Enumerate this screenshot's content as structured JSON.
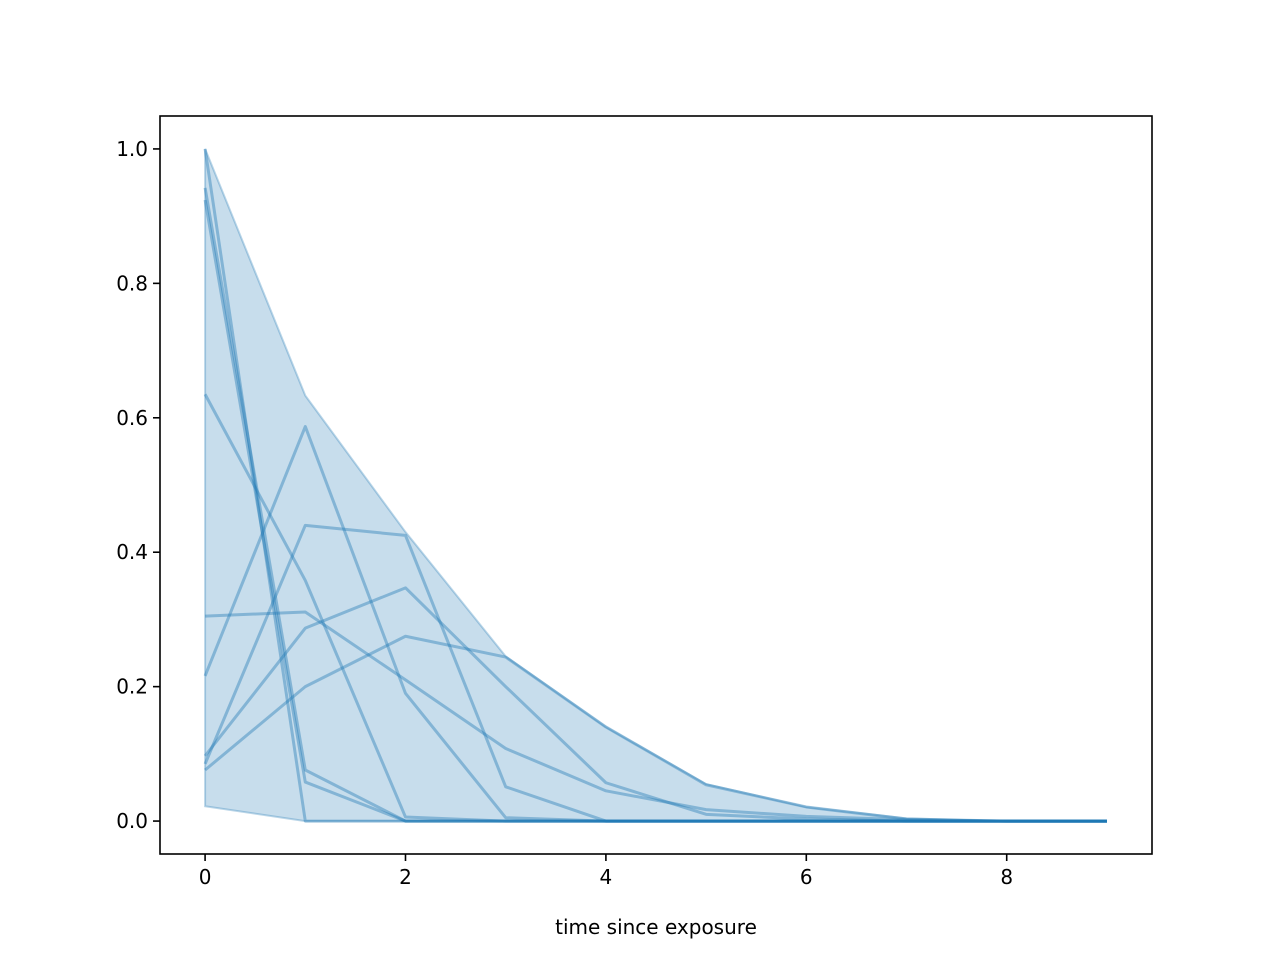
{
  "chart_data": {
    "type": "line",
    "title": "",
    "xlabel": "time since exposure",
    "ylabel": "",
    "xlim": [
      -0.45,
      9.45
    ],
    "ylim": [
      -0.049,
      1.049
    ],
    "xticks": [
      "0",
      "2",
      "4",
      "6",
      "8"
    ],
    "yticks": [
      "0.0",
      "0.2",
      "0.4",
      "0.6",
      "0.8",
      "1.0"
    ],
    "grid": false,
    "legend": "none",
    "color": "#1f77b4",
    "x": [
      0,
      1,
      2,
      3,
      4,
      5,
      6,
      7,
      8,
      9
    ],
    "band": {
      "upper": [
        1.0,
        0.633,
        0.43,
        0.245,
        0.14,
        0.055,
        0.021,
        0.004,
        0.0,
        0.0
      ],
      "lower": [
        0.022,
        0.0,
        0.0,
        0.0,
        0.0,
        0.0,
        0.0,
        0.0,
        0.0,
        0.0
      ]
    },
    "series": [
      {
        "values": [
          1.0,
          0.0,
          0.0,
          0.0,
          0.0,
          0.0,
          0.0,
          0.0,
          0.0,
          0.0
        ]
      },
      {
        "values": [
          0.942,
          0.076,
          0.0,
          0.0,
          0.0,
          0.0,
          0.0,
          0.0,
          0.0,
          0.0
        ]
      },
      {
        "values": [
          0.924,
          0.058,
          0.0,
          0.0,
          0.0,
          0.0,
          0.0,
          0.0,
          0.0,
          0.0
        ]
      },
      {
        "values": [
          0.635,
          0.358,
          0.006,
          0.0,
          0.0,
          0.0,
          0.0,
          0.0,
          0.0,
          0.0
        ]
      },
      {
        "values": [
          0.216,
          0.587,
          0.19,
          0.005,
          0.0,
          0.0,
          0.0,
          0.0,
          0.0,
          0.0
        ]
      },
      {
        "values": [
          0.305,
          0.311,
          0.21,
          0.108,
          0.045,
          0.017,
          0.007,
          0.002,
          0.0,
          0.0
        ]
      },
      {
        "values": [
          0.085,
          0.44,
          0.425,
          0.051,
          0.0,
          0.0,
          0.0,
          0.0,
          0.0,
          0.0
        ]
      },
      {
        "values": [
          0.097,
          0.287,
          0.347,
          0.2,
          0.057,
          0.01,
          0.003,
          0.0,
          0.0,
          0.0
        ]
      },
      {
        "values": [
          0.076,
          0.2,
          0.275,
          0.244,
          0.14,
          0.054,
          0.021,
          0.003,
          0.0,
          0.0
        ]
      }
    ]
  }
}
